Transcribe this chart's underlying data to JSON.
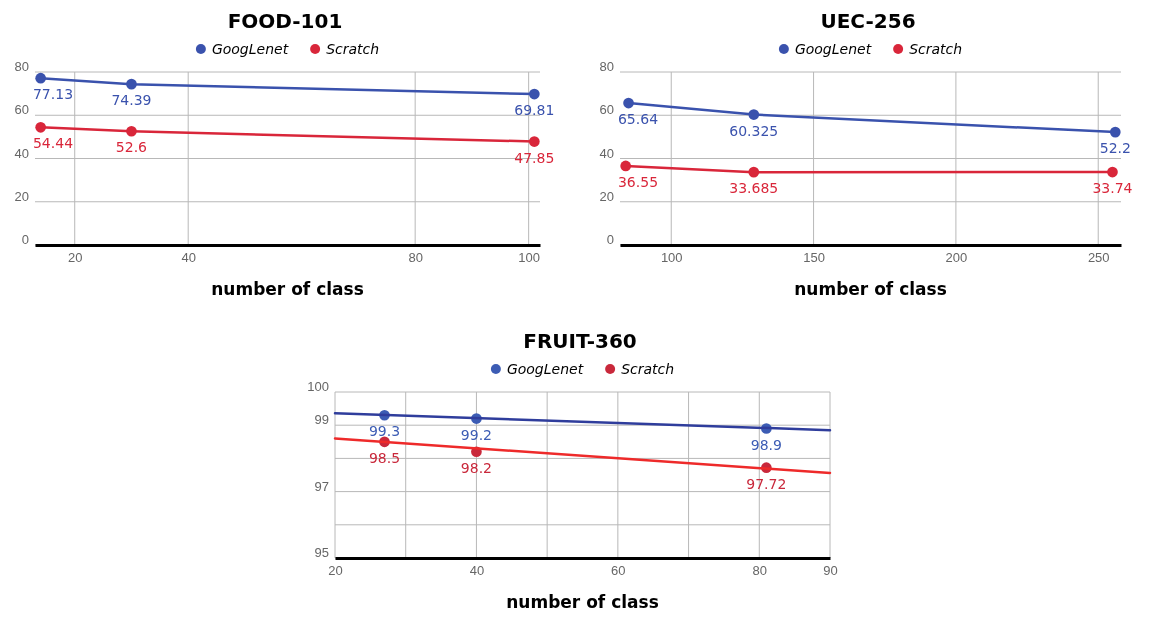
{
  "chart_data": [
    {
      "type": "line",
      "title": "FOOD-101",
      "xlabel": "number of class",
      "xlim": [
        13,
        102
      ],
      "xticks": [
        20,
        40,
        80,
        100
      ],
      "ylim": [
        0,
        80
      ],
      "yticks": [
        0,
        20,
        40,
        60,
        80
      ],
      "grid": true,
      "legend": "top",
      "marker": "circle",
      "series": [
        {
          "name": "GoogLenet",
          "color": "#3a52ad",
          "x": [
            14,
            30,
            101
          ],
          "values": [
            77.13,
            74.39,
            69.81
          ],
          "value_labels": [
            "77.13",
            "74.39",
            "69.81"
          ]
        },
        {
          "name": "Scratch",
          "color": "#d9263a",
          "x": [
            14,
            30,
            101
          ],
          "values": [
            54.44,
            52.6,
            47.85
          ],
          "value_labels": [
            "54.44",
            "52.6",
            "47.85"
          ]
        }
      ]
    },
    {
      "type": "line",
      "title": "UEC-256",
      "xlabel": "number of class",
      "xlim": [
        82,
        258
      ],
      "xticks": [
        100,
        150,
        200,
        250
      ],
      "ylim": [
        0,
        80
      ],
      "yticks": [
        0,
        20,
        40,
        60,
        80
      ],
      "grid": true,
      "legend": "top",
      "marker": "circle",
      "series": [
        {
          "name": "GoogLenet",
          "color": "#3a52ad",
          "x": [
            85,
            129,
            256
          ],
          "values": [
            65.64,
            60.325,
            52.2
          ],
          "value_labels": [
            "65.64",
            "60.325",
            "52.2"
          ]
        },
        {
          "name": "Scratch",
          "color": "#d9263a",
          "x": [
            84,
            129,
            255
          ],
          "values": [
            36.55,
            33.685,
            33.74
          ],
          "value_labels": [
            "36.55",
            "33.685",
            "33.74"
          ]
        }
      ]
    },
    {
      "type": "scatter",
      "title": "FRUIT-360",
      "xlabel": "number of class",
      "xlim": [
        20,
        90
      ],
      "xticks": [
        20,
        {
          "value": 30,
          "label": null
        },
        40,
        {
          "value": 50,
          "label": null
        },
        60,
        {
          "value": 70,
          "label": null
        },
        80,
        90
      ],
      "ylim": [
        95,
        100
      ],
      "yticks": [
        95,
        {
          "value": 96,
          "label": null
        },
        97,
        {
          "value": 98,
          "label": null
        },
        99,
        100
      ],
      "grid": true,
      "legend": "top",
      "marker": "circle",
      "series": [
        {
          "name": "GoogLenet",
          "color": "#3c5cb4",
          "x": [
            27,
            40,
            81
          ],
          "values": [
            99.3,
            99.2,
            98.9
          ],
          "value_labels": [
            "99.3",
            "99.2",
            "98.9"
          ]
        },
        {
          "name": "Scratch",
          "color": "#c9283b",
          "x": [
            27,
            40,
            81
          ],
          "values": [
            98.5,
            98.2,
            97.72
          ],
          "value_labels": [
            "98.5",
            "98.2",
            "97.72"
          ]
        },
        {
          "type": "line",
          "marker": "none",
          "color": "#2f3d9c",
          "x": [
            20,
            90
          ],
          "values": [
            99.36,
            98.85
          ]
        },
        {
          "type": "line",
          "marker": "none",
          "color": "#ee2a2a",
          "x": [
            20,
            90
          ],
          "values": [
            98.6,
            97.56
          ]
        }
      ]
    }
  ]
}
